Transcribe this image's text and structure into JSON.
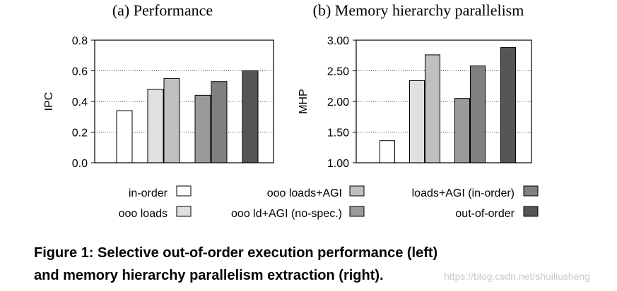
{
  "chart_data": [
    {
      "type": "bar",
      "title": "(a) Performance",
      "ylabel": "IPC",
      "xlabel": "",
      "ylim": [
        0,
        0.8
      ],
      "yticks": [
        "0.0",
        "0.2",
        "0.4",
        "0.6",
        "0.8"
      ],
      "categories": [
        "in-order",
        "ooo loads",
        "ooo loads+AGI",
        "ooo ld+AGI (no-spec.)",
        "loads+AGI (in-order)",
        "out-of-order"
      ],
      "values": [
        0.34,
        0.48,
        0.55,
        0.44,
        0.53,
        0.6
      ],
      "grid": "horizontal dotted"
    },
    {
      "type": "bar",
      "title": "(b) Memory hierarchy parallelism",
      "ylabel": "MHP",
      "xlabel": "",
      "ylim": [
        1.0,
        3.0
      ],
      "yticks": [
        "1.00",
        "1.50",
        "2.00",
        "2.50",
        "3.00"
      ],
      "categories": [
        "in-order",
        "ooo loads",
        "ooo loads+AGI",
        "ooo ld+AGI (no-spec.)",
        "loads+AGI (in-order)",
        "out-of-order"
      ],
      "values": [
        1.36,
        2.34,
        2.76,
        2.05,
        2.58,
        2.88
      ],
      "grid": "horizontal dotted"
    }
  ],
  "legend": [
    {
      "label": "in-order",
      "color": "#ffffff"
    },
    {
      "label": "ooo loads",
      "color": "#e0e0e0"
    },
    {
      "label": "ooo loads+AGI",
      "color": "#bfbfbf"
    },
    {
      "label": "ooo ld+AGI (no-spec.)",
      "color": "#9a9a9a"
    },
    {
      "label": "loads+AGI (in-order)",
      "color": "#808080"
    },
    {
      "label": "out-of-order",
      "color": "#555555"
    }
  ],
  "caption": {
    "line1": "Figure 1:  Selective out-of-order execution performance (left)",
    "line2": "and memory hierarchy parallelism extraction (right)."
  },
  "watermark": "https://blog.csdn.net/shuiliusheng"
}
